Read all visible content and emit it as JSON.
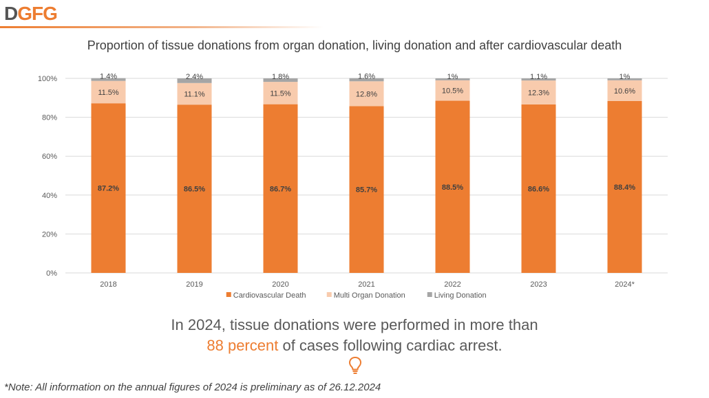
{
  "logo": {
    "first": "D",
    "rest": "GFG"
  },
  "chart_data": {
    "type": "bar",
    "stacked": true,
    "title": "Proportion of tissue donations from organ donation, living donation and after cardiovascular death",
    "categories": [
      "2018",
      "2019",
      "2020",
      "2021",
      "2022",
      "2023",
      "2024*"
    ],
    "ylim": [
      0,
      100
    ],
    "yticks": [
      "0%",
      "20%",
      "40%",
      "60%",
      "80%",
      "100%"
    ],
    "grid": true,
    "legend_position": "bottom",
    "series": [
      {
        "name": "Cardiovascular Death",
        "color": "#ed7d31",
        "values": [
          87.2,
          86.5,
          86.7,
          85.7,
          88.5,
          86.6,
          88.4
        ],
        "labels": [
          "87.2%",
          "86.5%",
          "86.7%",
          "85.7%",
          "88.5%",
          "86.6%",
          "88.4%"
        ]
      },
      {
        "name": "Multi Organ Donation",
        "color": "#f8cbad",
        "values": [
          11.5,
          11.1,
          11.5,
          12.8,
          10.5,
          12.3,
          10.6
        ],
        "labels": [
          "11.5%",
          "11.1%",
          "11.5%",
          "12.8%",
          "10.5%",
          "12.3%",
          "10.6%"
        ]
      },
      {
        "name": "Living Donation",
        "color": "#a5a5a5",
        "values": [
          1.4,
          2.4,
          1.8,
          1.6,
          1,
          1.1,
          1
        ],
        "labels": [
          "1.4%",
          "2.4%",
          "1.8%",
          "1.6%",
          "1%",
          "1.1%",
          "1%"
        ]
      }
    ]
  },
  "statement": {
    "line1": "In 2024, tissue donations were performed in more than",
    "highlight": "88 percent",
    "line2_rest": " of cases following cardiac arrest."
  },
  "note": "*Note: All information on the annual figures of 2024 is preliminary as of 26.12.2024",
  "icons": {
    "bulb": "lightbulb-icon"
  },
  "colors": {
    "accent": "#ed7d31",
    "text": "#595959"
  }
}
